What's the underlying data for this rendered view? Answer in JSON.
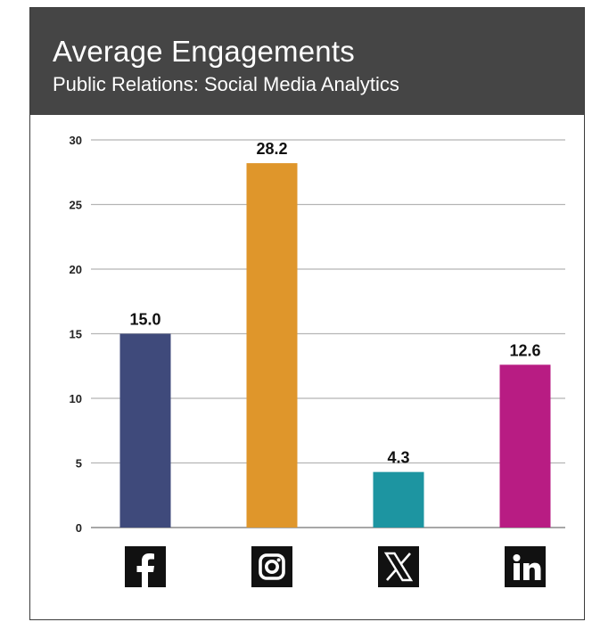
{
  "header": {
    "title": "Average Engagements",
    "subtitle": "Public Relations: Social Media Analytics"
  },
  "chart_data": {
    "type": "bar",
    "categories": [
      "facebook-icon",
      "instagram-icon",
      "x-icon",
      "linkedin-icon"
    ],
    "values": [
      15.0,
      28.2,
      4.3,
      12.6
    ],
    "value_labels": [
      "15.0",
      "28.2",
      "4.3",
      "12.6"
    ],
    "colors": [
      "#3f4a7b",
      "#df962b",
      "#1d95a1",
      "#b81c83"
    ],
    "ylim": [
      0,
      30
    ],
    "yticks": [
      0,
      5,
      10,
      15,
      20,
      25,
      30
    ],
    "grid": true,
    "title": "",
    "xlabel": "",
    "ylabel": ""
  },
  "icons": {
    "color": "#111111"
  }
}
